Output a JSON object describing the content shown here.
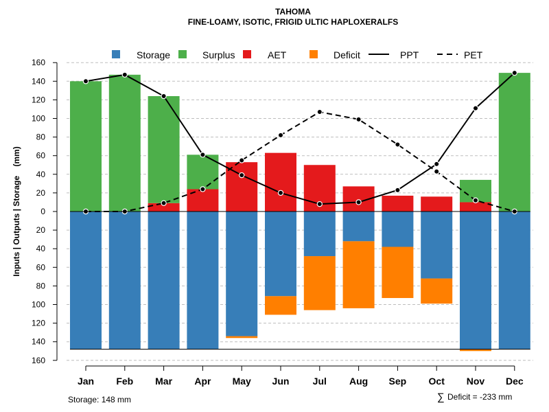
{
  "chart_data": {
    "type": "bar",
    "title": "TAHOMA",
    "subtitle": "FINE-LOAMY, ISOTIC, FRIGID ULTIC HAPLOXERALFS",
    "ylabel": "Inputs | Outputs | Storage    (mm)",
    "xlabel": "",
    "ylim": [
      -160,
      160
    ],
    "yticks": [
      -160,
      -140,
      -120,
      -100,
      -80,
      -60,
      -40,
      -20,
      0,
      20,
      40,
      60,
      80,
      100,
      120,
      140,
      160
    ],
    "ytick_labels": [
      "160",
      "140",
      "120",
      "100",
      "80",
      "60",
      "40",
      "20",
      "0",
      "20",
      "40",
      "60",
      "80",
      "100",
      "120",
      "140",
      "160"
    ],
    "categories": [
      "Jan",
      "Feb",
      "Mar",
      "Apr",
      "May",
      "Jun",
      "Jul",
      "Aug",
      "Sep",
      "Oct",
      "Nov",
      "Dec"
    ],
    "grid": true,
    "legend_position": "top",
    "legend": [
      {
        "label": "Storage",
        "kind": "box",
        "color": "#377EB8"
      },
      {
        "label": "Surplus",
        "kind": "box",
        "color": "#4DAF4A"
      },
      {
        "label": "AET",
        "kind": "box",
        "color": "#E41A1C"
      },
      {
        "label": "Deficit",
        "kind": "box",
        "color": "#FF7F00"
      },
      {
        "label": "PPT",
        "kind": "solid",
        "color": "#000000"
      },
      {
        "label": "PET",
        "kind": "dashed",
        "color": "#000000"
      }
    ],
    "series": [
      {
        "name": "Storage",
        "color": "#377EB8",
        "values": [
          148,
          148,
          148,
          148,
          134,
          91,
          48,
          32,
          38,
          72,
          148,
          148
        ]
      },
      {
        "name": "Deficit",
        "color": "#FF7F00",
        "values": [
          0,
          0,
          0,
          0,
          2,
          20,
          58,
          72,
          55,
          27,
          2,
          0
        ]
      },
      {
        "name": "AET",
        "color": "#E41A1C",
        "values": [
          0,
          0,
          9,
          24,
          53,
          63,
          50,
          27,
          17,
          16,
          10,
          0
        ]
      },
      {
        "name": "Surplus",
        "color": "#4DAF4A",
        "values": [
          140,
          147,
          115,
          37,
          0,
          0,
          0,
          0,
          0,
          0,
          24,
          149
        ]
      },
      {
        "name": "PPT",
        "color": "#000000",
        "values": [
          140,
          147,
          124,
          61,
          39,
          20,
          8,
          10,
          23,
          51,
          111,
          149
        ]
      },
      {
        "name": "PET",
        "color": "#000000",
        "values": [
          0,
          0,
          9,
          24,
          55,
          82,
          107,
          99,
          72,
          43,
          12,
          0
        ]
      }
    ],
    "storage_capacity": 148,
    "footer_left": "Storage: 148 mm",
    "footer_right_symbol": "∑",
    "footer_right": "Deficit = -233 mm"
  }
}
